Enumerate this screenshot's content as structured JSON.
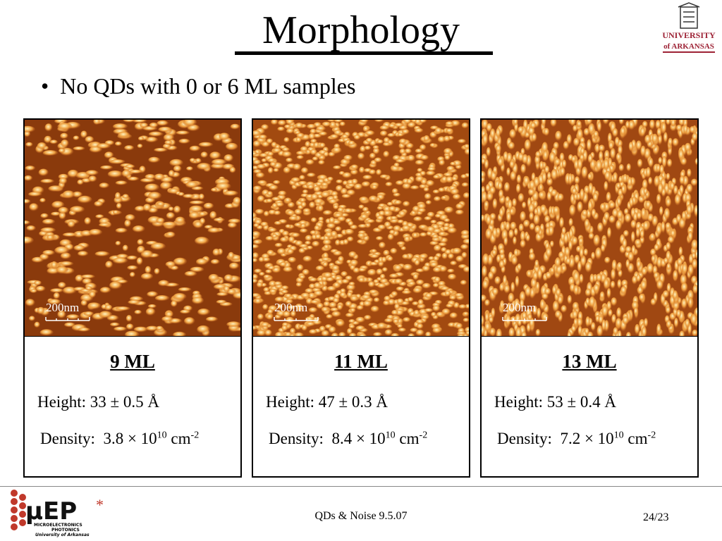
{
  "header": {
    "title": "Morphology",
    "logo": {
      "line1": "UNIVERSITY",
      "line2": "of ARKANSAS"
    }
  },
  "bullets": [
    "No QDs with 0 or 6 ML samples"
  ],
  "panels": [
    {
      "scale": "200nm",
      "label": "9 ML",
      "height": "Height: 33 ± 0.5 Å",
      "density": {
        "text": "Density:  3.8 × 10",
        "exp": "10",
        "unit": " cm",
        "unit_exp": "-2"
      }
    },
    {
      "scale": "200nm",
      "label": "11 ML",
      "height": "Height: 47 ± 0.3 Å",
      "density": {
        "text": "Density:  8.4 × 10",
        "exp": "10",
        "unit": " cm",
        "unit_exp": "-2"
      }
    },
    {
      "scale": "200nm",
      "label": "13 ML",
      "height": "Height: 53 ± 0.4 Å",
      "density": {
        "text": "Density:  7.2 × 10",
        "exp": "10",
        "unit": " cm",
        "unit_exp": "-2"
      }
    }
  ],
  "footer": {
    "logo": {
      "mark": "μEP",
      "line1": "MICROELECTRONICS",
      "line2": "PHOTONICS",
      "line3": "University of Arkansas"
    },
    "text": "QDs & Noise 9.5.07",
    "page": "24/23"
  }
}
